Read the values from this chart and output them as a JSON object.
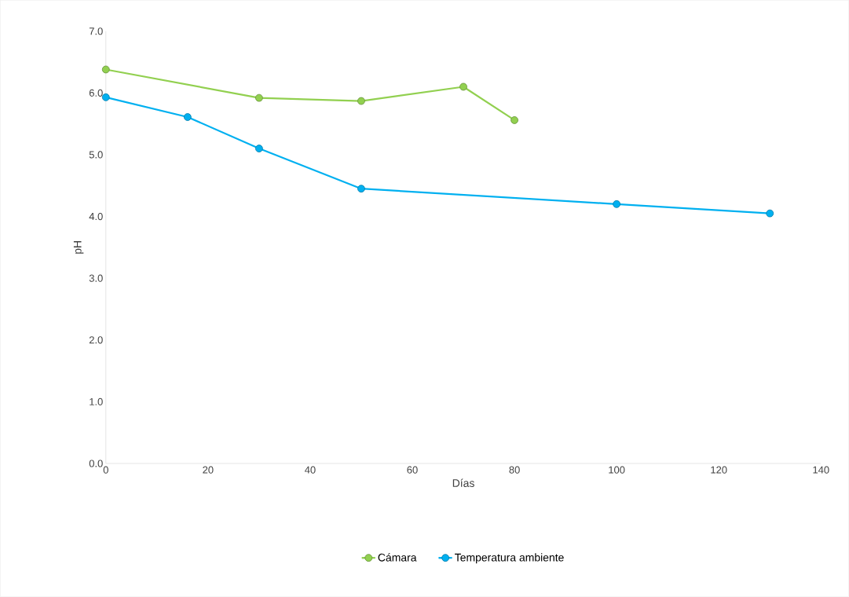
{
  "chart_data": {
    "type": "line",
    "xlabel": "Días",
    "ylabel": "pH",
    "xlim": [
      0,
      140
    ],
    "xticks": [
      0,
      20,
      40,
      60,
      80,
      100,
      120,
      140
    ],
    "ylim": [
      0,
      7
    ],
    "yticks": [
      {
        "value": 0,
        "label": "0.0"
      },
      {
        "value": 1,
        "label": "1.0"
      },
      {
        "value": 2,
        "label": "2.0"
      },
      {
        "value": 3,
        "label": "3.0"
      },
      {
        "value": 4,
        "label": "4.0"
      },
      {
        "value": 5,
        "label": "5.0"
      },
      {
        "value": 6,
        "label": "6.0"
      },
      {
        "value": 7,
        "label": "7.0"
      }
    ],
    "grid": false,
    "legend": "bottom",
    "marker": "circle",
    "line_style": "solid",
    "series": [
      {
        "name": "Cámara",
        "color": "#92d050",
        "x": [
          0,
          30,
          50,
          70,
          80
        ],
        "values": [
          6.38,
          5.92,
          5.87,
          6.1,
          5.56
        ]
      },
      {
        "name": "Temperatura ambiente",
        "color": "#00b0f0",
        "x": [
          0,
          16,
          30,
          50,
          100,
          130
        ],
        "values": [
          5.93,
          5.61,
          5.1,
          4.45,
          4.2,
          4.05
        ]
      }
    ]
  }
}
